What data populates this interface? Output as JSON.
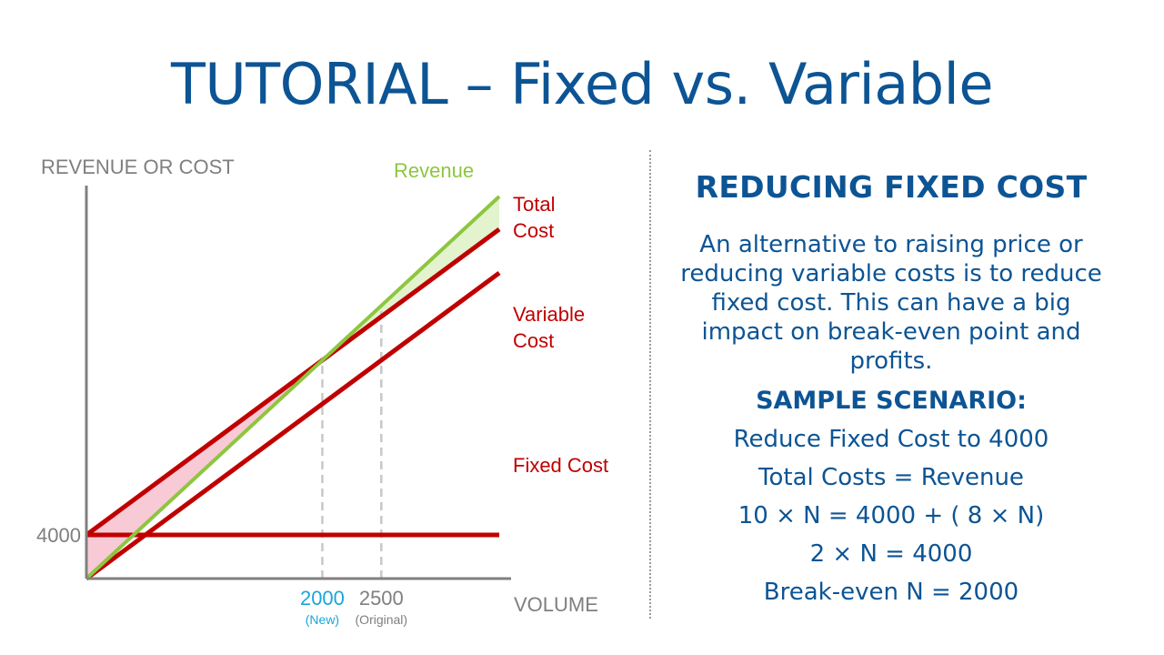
{
  "slide": {
    "title": "TUTORIAL – Fixed vs. Variable"
  },
  "panel": {
    "heading": "REDUCING FIXED COST",
    "body": "An alternative to raising price or reducing variable costs is to reduce fixed cost. This can have a big impact on break-even point and profits.",
    "scenario_heading": "SAMPLE SCENARIO:",
    "scenario_lines": [
      "Reduce Fixed Cost to 4000",
      "Total Costs = Revenue",
      "10 × N = 4000 + ( 8 × N)",
      "2 × N = 4000",
      "Break-even N = 2000"
    ]
  },
  "chart_data": {
    "type": "line",
    "ylabel": "REVENUE OR COST",
    "xlabel": "VOLUME",
    "xlim": [
      0,
      3600
    ],
    "ylim": [
      0,
      36000
    ],
    "x": [
      0,
      3500
    ],
    "series": [
      {
        "name": "Revenue",
        "values": [
          0,
          35000
        ],
        "color": "#8dc63f"
      },
      {
        "name": "Total Cost",
        "values": [
          4000,
          32000
        ],
        "color": "#c00000"
      },
      {
        "name": "Variable Cost",
        "values": [
          0,
          28000
        ],
        "color": "#c00000"
      },
      {
        "name": "Fixed Cost",
        "values": [
          4000,
          4000
        ],
        "color": "#c00000"
      }
    ],
    "series_labels": [
      "Revenue",
      "Total\nCost",
      "Variable\nCost",
      "Fixed Cost"
    ],
    "y_ticks": [
      {
        "value": 4000,
        "label": "4000"
      }
    ],
    "x_markers": [
      {
        "value": 2000,
        "label": "2000",
        "sublabel": "(New)",
        "color": "#1ba6d8"
      },
      {
        "value": 2500,
        "label": "2500",
        "sublabel": "(Original)",
        "color": "#7f7f7f"
      }
    ],
    "shaded_regions": [
      {
        "type": "loss",
        "from": 0,
        "to": 2000,
        "color": "#f4b8c8"
      },
      {
        "type": "profit",
        "from": 2000,
        "to": 3500,
        "color": "#d8efbe"
      }
    ],
    "grid": false
  }
}
